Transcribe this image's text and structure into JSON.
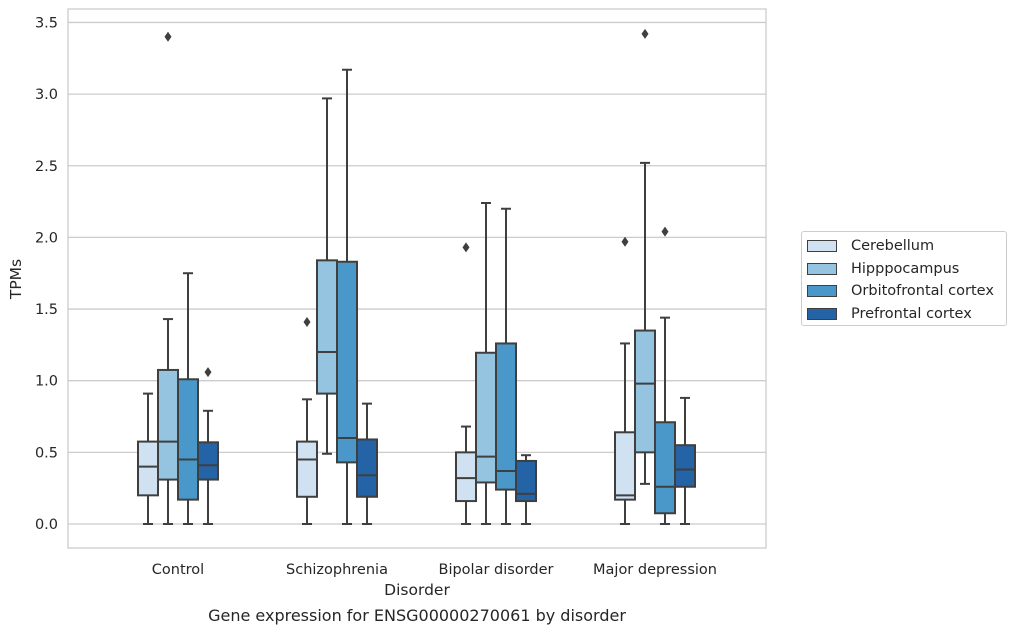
{
  "chart_data": {
    "type": "box",
    "xlabel": "Disorder",
    "ylabel": "TPMs",
    "ylim": [
      -0.17,
      3.6
    ],
    "yticks": [
      "0.0",
      "0.5",
      "1.0",
      "1.5",
      "2.0",
      "2.5",
      "3.0",
      "3.5"
    ],
    "categories": [
      "Control",
      "Schizophrenia",
      "Bipolar disorder",
      "Major depression"
    ],
    "grid": "horizontal",
    "legend_position": "right",
    "series": [
      {
        "name": "Cerebellum",
        "color": "#d0e1f2",
        "boxes": [
          {
            "whislo": 0.0,
            "q1": 0.2,
            "med": 0.4,
            "q3": 0.575,
            "whishi": 0.91,
            "fliers": []
          },
          {
            "whislo": 0.0,
            "q1": 0.19,
            "med": 0.45,
            "q3": 0.575,
            "whishi": 0.87,
            "fliers": [
              1.41
            ]
          },
          {
            "whislo": 0.0,
            "q1": 0.16,
            "med": 0.32,
            "q3": 0.5,
            "whishi": 0.68,
            "fliers": [
              1.93
            ]
          },
          {
            "whislo": 0.0,
            "q1": 0.17,
            "med": 0.2,
            "q3": 0.64,
            "whishi": 1.26,
            "fliers": [
              1.97
            ]
          }
        ]
      },
      {
        "name": "Hipppocampus",
        "color": "#94c4df",
        "boxes": [
          {
            "whislo": 0.0,
            "q1": 0.31,
            "med": 0.575,
            "q3": 1.075,
            "whishi": 1.43,
            "fliers": [
              3.4
            ]
          },
          {
            "whislo": 0.49,
            "q1": 0.91,
            "med": 1.2,
            "q3": 1.84,
            "whishi": 2.97,
            "fliers": []
          },
          {
            "whislo": 0.0,
            "q1": 0.29,
            "med": 0.47,
            "q3": 1.195,
            "whishi": 2.24,
            "fliers": []
          },
          {
            "whislo": 0.28,
            "q1": 0.5,
            "med": 0.98,
            "q3": 1.35,
            "whishi": 2.52,
            "fliers": [
              3.42
            ]
          }
        ]
      },
      {
        "name": "Orbitofrontal cortex",
        "color": "#4a98c9",
        "boxes": [
          {
            "whislo": 0.0,
            "q1": 0.17,
            "med": 0.45,
            "q3": 1.01,
            "whishi": 1.75,
            "fliers": []
          },
          {
            "whislo": 0.0,
            "q1": 0.43,
            "med": 0.6,
            "q3": 1.83,
            "whishi": 3.17,
            "fliers": []
          },
          {
            "whislo": 0.0,
            "q1": 0.24,
            "med": 0.37,
            "q3": 1.26,
            "whishi": 2.2,
            "fliers": []
          },
          {
            "whislo": 0.0,
            "q1": 0.075,
            "med": 0.26,
            "q3": 0.71,
            "whishi": 1.44,
            "fliers": [
              2.04
            ]
          }
        ]
      },
      {
        "name": "Prefrontal cortex",
        "color": "#2363a6",
        "boxes": [
          {
            "whislo": 0.0,
            "q1": 0.31,
            "med": 0.41,
            "q3": 0.57,
            "whishi": 0.79,
            "fliers": [
              1.06
            ]
          },
          {
            "whislo": 0.0,
            "q1": 0.19,
            "med": 0.34,
            "q3": 0.59,
            "whishi": 0.84,
            "fliers": []
          },
          {
            "whislo": 0.0,
            "q1": 0.16,
            "med": 0.21,
            "q3": 0.44,
            "whishi": 0.48,
            "fliers": []
          },
          {
            "whislo": 0.0,
            "q1": 0.26,
            "med": 0.38,
            "q3": 0.55,
            "whishi": 0.88,
            "fliers": []
          }
        ]
      }
    ]
  },
  "caption": "Gene expression for ENSG00000270061 by disorder"
}
